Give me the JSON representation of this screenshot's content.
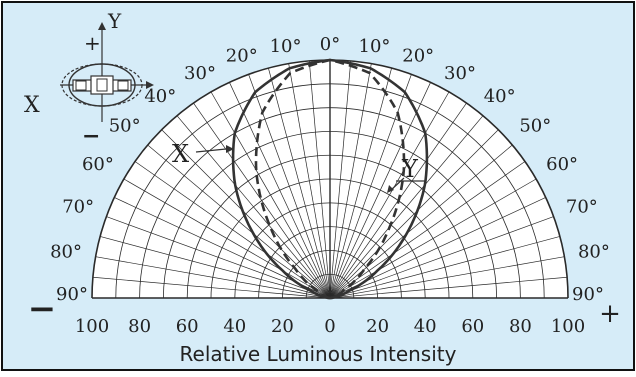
{
  "colors": {
    "background": "#d6ecf8",
    "border": "#111111",
    "grid": "#2a2a2a",
    "plot_fill": "#ffffff",
    "curve": "#333333"
  },
  "icons": {
    "device": "led-package-icon"
  },
  "chart_data": {
    "type": "polar-radiation-pattern",
    "title": "",
    "xlabel": "Relative Luminous Intensity",
    "angle_range": [
      -90,
      90
    ],
    "radius_range": [
      0,
      100
    ],
    "grid": true,
    "angle_tick_values": [
      0,
      10,
      20,
      30,
      40,
      50,
      60,
      70,
      80,
      90
    ],
    "angle_tick_labels": [
      "0°",
      "10°",
      "20°",
      "30°",
      "40°",
      "50°",
      "60°",
      "70°",
      "80°",
      "90°"
    ],
    "radial_tick_values": [
      100,
      80,
      60,
      40,
      20,
      0,
      20,
      40,
      60,
      80,
      100
    ],
    "radial_tick_labels": [
      "100",
      "80",
      "60",
      "40",
      "20",
      "0",
      "20",
      "40",
      "60",
      "80",
      "100"
    ],
    "sign_labels": {
      "negative": "−",
      "positive": "+"
    },
    "series": [
      {
        "name": "X",
        "line_style": "solid",
        "points": [
          {
            "angle": 0,
            "value": 100
          },
          {
            "angle": 10,
            "value": 98
          },
          {
            "angle": 20,
            "value": 92
          },
          {
            "angle": 30,
            "value": 80
          },
          {
            "angle": 40,
            "value": 62
          },
          {
            "angle": 50,
            "value": 42
          },
          {
            "angle": 60,
            "value": 23
          },
          {
            "angle": 70,
            "value": 8
          },
          {
            "angle": 80,
            "value": 2
          },
          {
            "angle": 90,
            "value": 0
          }
        ]
      },
      {
        "name": "Y",
        "line_style": "dashed",
        "points": [
          {
            "angle": 0,
            "value": 100
          },
          {
            "angle": 10,
            "value": 96
          },
          {
            "angle": 20,
            "value": 83
          },
          {
            "angle": 30,
            "value": 62
          },
          {
            "angle": 40,
            "value": 39
          },
          {
            "angle": 50,
            "value": 19
          },
          {
            "angle": 60,
            "value": 7
          },
          {
            "angle": 70,
            "value": 2
          },
          {
            "angle": 80,
            "value": 0.5
          },
          {
            "angle": 90,
            "value": 0
          }
        ]
      }
    ],
    "annotations": [
      "X",
      "Y"
    ]
  },
  "inset": {
    "x_axis_label": "X",
    "y_axis_label": "Y",
    "plus_label": "+",
    "minus_label": "−"
  }
}
